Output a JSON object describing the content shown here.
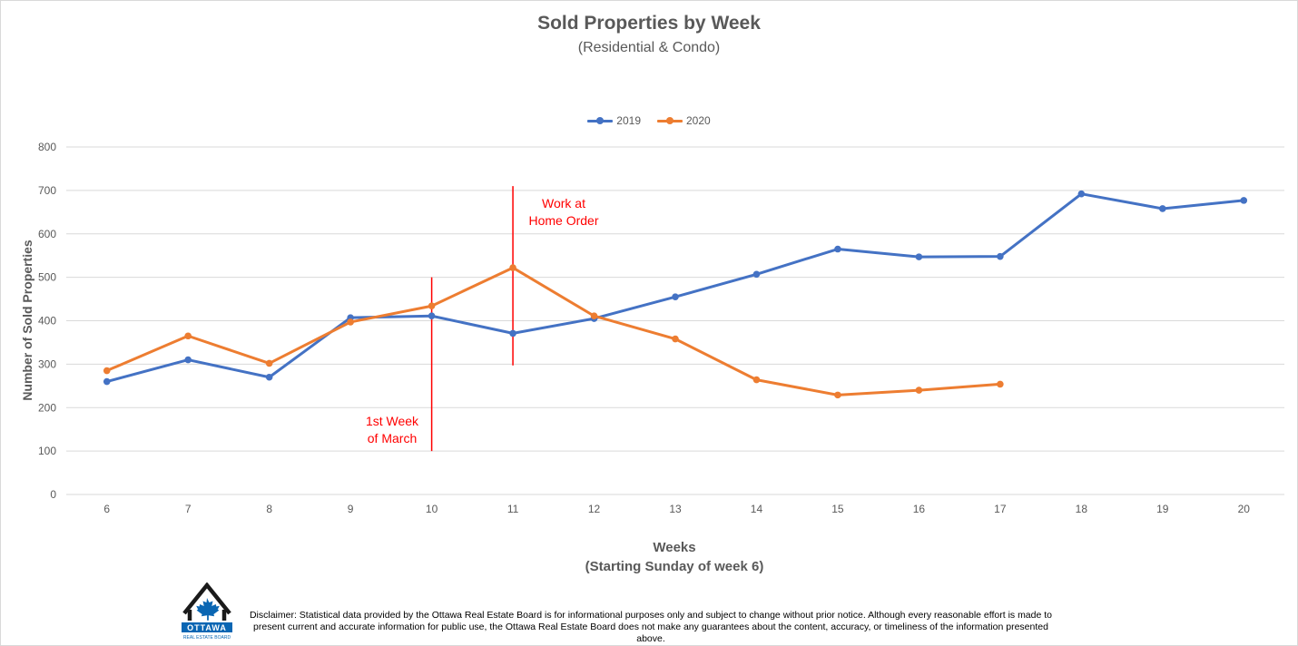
{
  "chart_data": {
    "type": "line",
    "title": "Sold Properties by Week",
    "subtitle": "(Residential & Condo)",
    "xlabel": "Weeks",
    "xlabel_sub": "(Starting Sunday of week 6)",
    "ylabel": "Number of Sold Properties",
    "categories": [
      "6",
      "7",
      "8",
      "9",
      "10",
      "11",
      "12",
      "13",
      "14",
      "15",
      "16",
      "17",
      "18",
      "19",
      "20"
    ],
    "ylim": [
      0,
      800
    ],
    "yticks": [
      "0",
      "100",
      "200",
      "300",
      "400",
      "500",
      "600",
      "700",
      "800"
    ],
    "grid": true,
    "legend_position": "top",
    "series": [
      {
        "name": "2019",
        "color": "#4472c4",
        "values": [
          260,
          310,
          270,
          407,
          411,
          371,
          405,
          455,
          507,
          565,
          547,
          548,
          692,
          658,
          677
        ]
      },
      {
        "name": "2020",
        "color": "#ed7d31",
        "values": [
          285,
          365,
          302,
          397,
          434,
          522,
          411,
          358,
          264,
          229,
          240,
          254,
          null,
          null,
          null
        ]
      }
    ],
    "annotations": [
      {
        "text": "1st Week\nof March",
        "line1": "1st Week",
        "line2": "of March",
        "x": "10",
        "y_from": 100,
        "y_to": 500,
        "color": "#ff0000"
      },
      {
        "text": "Work at\nHome Order",
        "line1": "Work at",
        "line2": "Home Order",
        "x": "11",
        "y_from": 297,
        "y_to": 710,
        "color": "#ff0000"
      }
    ]
  },
  "footer": {
    "logo_text": "OTTAWA",
    "logo_subtext": "REAL ESTATE BOARD",
    "disclaimer_line1": "Disclaimer: Statistical data provided by the Ottawa Real Estate Board is for informational purposes only and subject to change without prior notice. Although every reasonable effort is made to",
    "disclaimer_line2": "present current and accurate information for public use, the Ottawa Real Estate Board does not make any guarantees about the content, accuracy, or timeliness of the information presented above."
  }
}
